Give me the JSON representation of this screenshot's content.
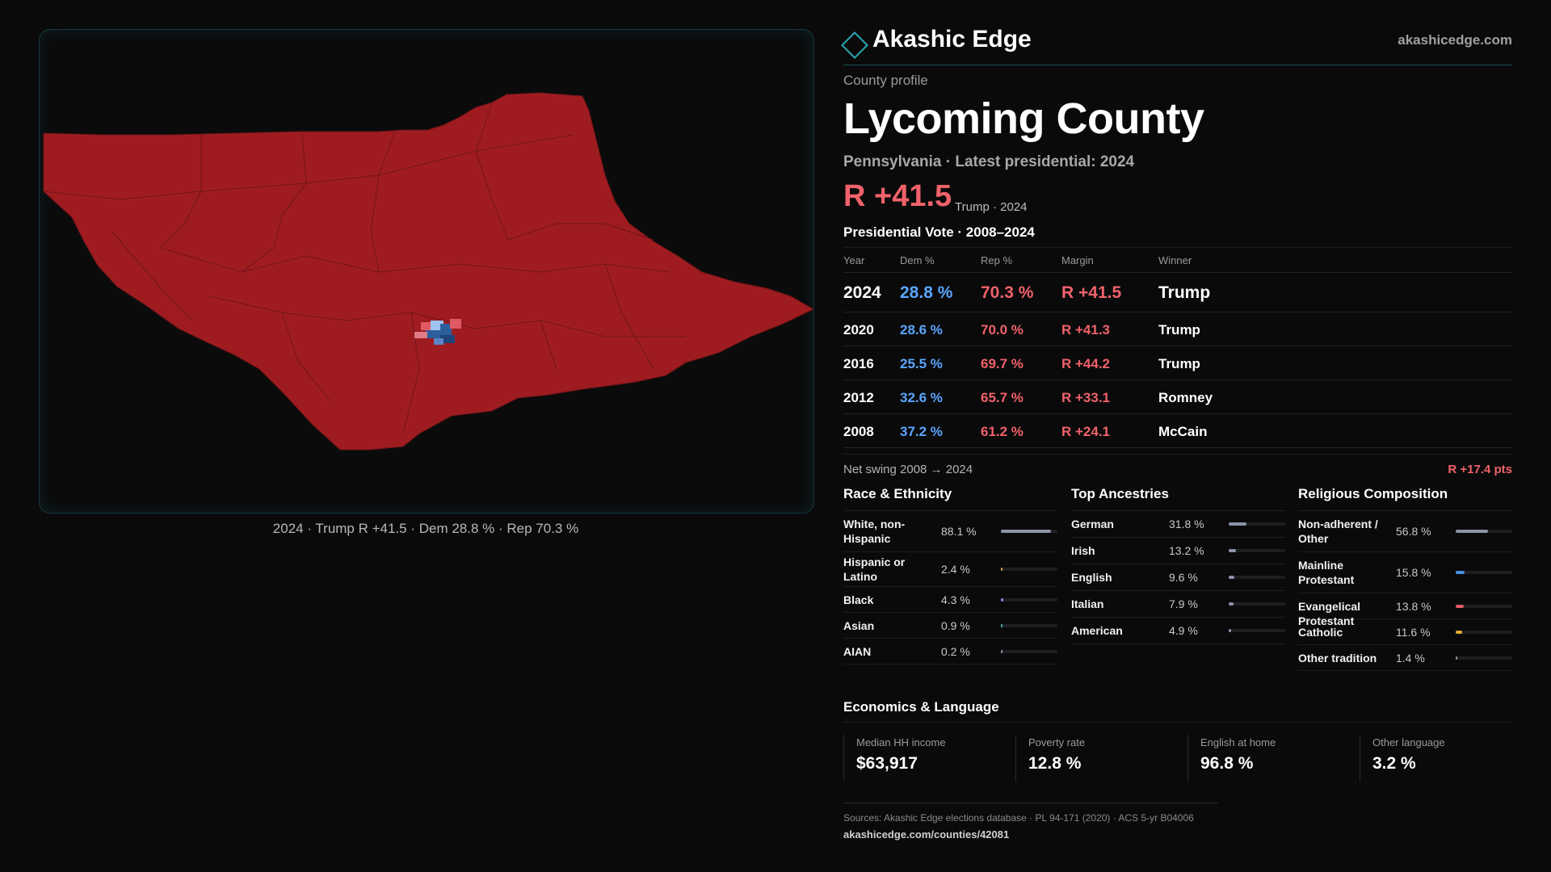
{
  "map": {
    "caption": "2024 · Trump R +41.5 · Dem 28.8 % · Rep 70.3 %",
    "colors": {
      "county_fill": "#9e1c20",
      "township_lines": "#6e1417",
      "dem_blue": "#2c5e9e",
      "light_blue": "#9ec5f0",
      "pink": "#e05a66"
    }
  },
  "brand": {
    "name": "Akashic Edge",
    "url": "akashicedge.com",
    "icon": "diamond-outline-icon",
    "accent": "#2aa7b4"
  },
  "profile": {
    "kicker": "County profile",
    "title": "Lycoming County",
    "subtitle": "Pennsylvania · Latest presidential: 2024",
    "margin": "R +41.5",
    "margin_sub": "Trump · 2024"
  },
  "vote_table": {
    "title": "Presidential Vote · 2008–2024",
    "headers": {
      "year": "Year",
      "dem": "Dem %",
      "rep": "Rep %",
      "margin": "Margin",
      "winner": "Winner"
    },
    "rows": [
      {
        "year": "2024",
        "dem": "28.8 %",
        "rep": "70.3 %",
        "margin": "R +41.5",
        "winner": "Trump"
      },
      {
        "year": "2020",
        "dem": "28.6 %",
        "rep": "70.0 %",
        "margin": "R +41.3",
        "winner": "Trump"
      },
      {
        "year": "2016",
        "dem": "25.5 %",
        "rep": "69.7 %",
        "margin": "R +44.2",
        "winner": "Trump"
      },
      {
        "year": "2012",
        "dem": "32.6 %",
        "rep": "65.7 %",
        "margin": "R +33.1",
        "winner": "Romney"
      },
      {
        "year": "2008",
        "dem": "37.2 %",
        "rep": "61.2 %",
        "margin": "R +24.1",
        "winner": "McCain"
      }
    ],
    "swing_label": "Net swing 2008 → 2024",
    "swing_value": "R +17.4 pts"
  },
  "race": {
    "title": "Race & Ethnicity",
    "items": [
      {
        "label": "White, non-Hispanic",
        "value": "88.1 %",
        "pct": 88.1,
        "color": "#8a94a6"
      },
      {
        "label": "Hispanic or Latino",
        "value": "2.4 %",
        "pct": 2.4,
        "color": "#d99a2b"
      },
      {
        "label": "Black",
        "value": "4.3 %",
        "pct": 4.3,
        "color": "#8b7ff0"
      },
      {
        "label": "Asian",
        "value": "0.9 %",
        "pct": 0.9,
        "color": "#3fb6a8"
      },
      {
        "label": "AIAN",
        "value": "0.2 %",
        "pct": 0.2,
        "color": "#8a94a6"
      }
    ]
  },
  "ancestry": {
    "title": "Top Ancestries",
    "items": [
      {
        "label": "German",
        "value": "31.8 %",
        "pct": 31.8,
        "color": "#8a94a6"
      },
      {
        "label": "Irish",
        "value": "13.2 %",
        "pct": 13.2,
        "color": "#8a94a6"
      },
      {
        "label": "English",
        "value": "9.6 %",
        "pct": 9.6,
        "color": "#8a94a6"
      },
      {
        "label": "Italian",
        "value": "7.9 %",
        "pct": 7.9,
        "color": "#8a94a6"
      },
      {
        "label": "American",
        "value": "4.9 %",
        "pct": 4.9,
        "color": "#8a94a6"
      }
    ]
  },
  "religion": {
    "title": "Religious Composition",
    "items": [
      {
        "label": "Non-adherent / Other",
        "value": "56.8 %",
        "pct": 56.8,
        "color": "#8a94a6"
      },
      {
        "label": "Mainline Protestant",
        "value": "15.8 %",
        "pct": 15.8,
        "color": "#4a90e2"
      },
      {
        "label": "Evangelical Protestant",
        "value": "13.8 %",
        "pct": 13.8,
        "color": "#e05a66"
      },
      {
        "label": "Catholic",
        "value": "11.6 %",
        "pct": 11.6,
        "color": "#e0b030"
      },
      {
        "label": "Other tradition",
        "value": "1.4 %",
        "pct": 1.4,
        "color": "#8a94a6"
      }
    ]
  },
  "economics": {
    "title": "Economics & Language",
    "items": [
      {
        "label": "Median HH income",
        "value": "$63,917"
      },
      {
        "label": "Poverty rate",
        "value": "12.8 %"
      },
      {
        "label": "English at home",
        "value": "96.8 %"
      },
      {
        "label": "Other language",
        "value": "3.2 %"
      }
    ]
  },
  "footer": {
    "sources": "Sources: Akashic Edge elections database · PL 94-171 (2020) · ACS 5-yr B04006",
    "url": "akashicedge.com/counties/42081"
  }
}
